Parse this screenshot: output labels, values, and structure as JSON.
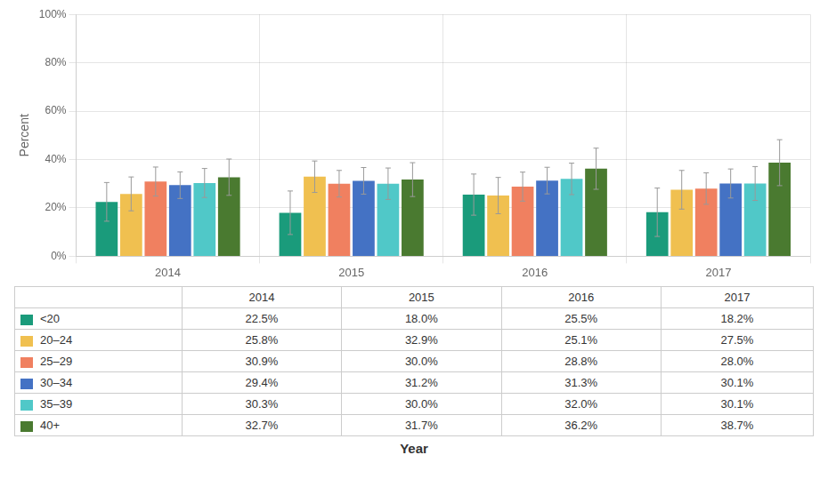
{
  "chart_data": {
    "type": "bar",
    "categories": [
      "2014",
      "2015",
      "2016",
      "2017"
    ],
    "series": [
      {
        "name": "<20",
        "color": "#1a9b7b",
        "values": [
          22.5,
          18.0,
          25.5,
          18.2
        ],
        "errors": [
          8.0,
          9.0,
          8.5,
          10.0
        ],
        "value_labels": [
          "22.5%",
          "18.0%",
          "25.5%",
          "18.2%"
        ]
      },
      {
        "name": "20–24",
        "color": "#f0c050",
        "values": [
          25.8,
          32.9,
          25.1,
          27.5
        ],
        "errors": [
          7.0,
          6.5,
          7.5,
          8.0
        ],
        "value_labels": [
          "25.8%",
          "32.9%",
          "25.1%",
          "27.5%"
        ]
      },
      {
        "name": "25–29",
        "color": "#f08060",
        "values": [
          30.9,
          30.0,
          28.8,
          28.0
        ],
        "errors": [
          6.0,
          5.5,
          6.0,
          6.5
        ],
        "value_labels": [
          "30.9%",
          "30.0%",
          "28.8%",
          "28.0%"
        ]
      },
      {
        "name": "30–34",
        "color": "#4472c4",
        "values": [
          29.4,
          31.2,
          31.3,
          30.1
        ],
        "errors": [
          5.5,
          5.5,
          5.5,
          6.0
        ],
        "value_labels": [
          "29.4%",
          "31.2%",
          "31.3%",
          "30.1%"
        ]
      },
      {
        "name": "35–39",
        "color": "#50c8c8",
        "values": [
          30.3,
          30.0,
          32.0,
          30.1
        ],
        "errors": [
          6.0,
          6.5,
          6.5,
          7.0
        ],
        "value_labels": [
          "30.3%",
          "30.0%",
          "32.0%",
          "30.1%"
        ]
      },
      {
        "name": "40+",
        "color": "#4a7a30",
        "values": [
          32.7,
          31.7,
          36.2,
          38.7
        ],
        "errors": [
          7.5,
          7.0,
          8.5,
          9.5
        ],
        "value_labels": [
          "32.7%",
          "31.7%",
          "36.2%",
          "38.7%"
        ]
      }
    ],
    "ylabel": "Percent",
    "xlabel": "Year",
    "ylim": [
      0,
      100
    ],
    "yticks": [
      {
        "value": 0,
        "label": "0%"
      },
      {
        "value": 20,
        "label": "20%"
      },
      {
        "value": 40,
        "label": "40%"
      },
      {
        "value": 60,
        "label": "60%"
      },
      {
        "value": 80,
        "label": "80%"
      },
      {
        "value": 100,
        "label": "100%"
      }
    ],
    "grid": true
  }
}
